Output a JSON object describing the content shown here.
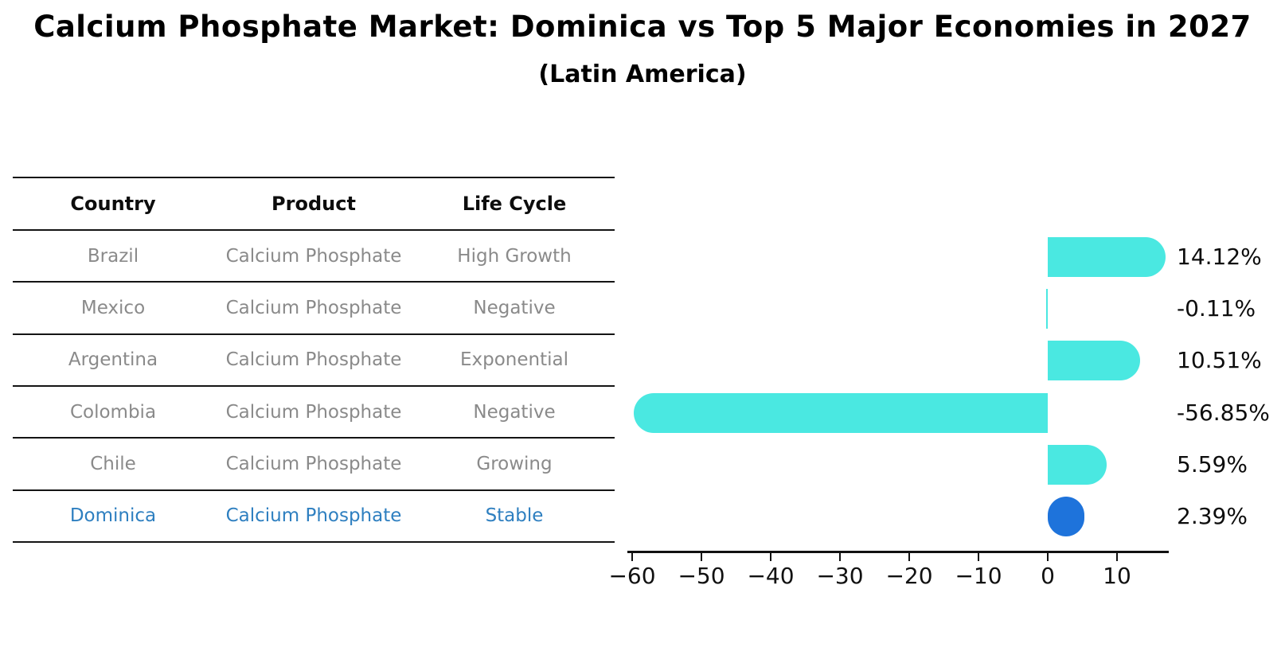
{
  "header": {
    "title": "Calcium Phosphate Market: Dominica vs Top 5 Major Economies in 2027",
    "subtitle": "(Latin America)"
  },
  "table": {
    "headers": [
      "Country",
      "Product",
      "Life Cycle"
    ],
    "rows": [
      {
        "country": "Brazil",
        "product": "Calcium Phosphate",
        "life_cycle": "High Growth",
        "highlight": false
      },
      {
        "country": "Mexico",
        "product": "Calcium Phosphate",
        "life_cycle": "Negative",
        "highlight": false
      },
      {
        "country": "Argentina",
        "product": "Calcium Phosphate",
        "life_cycle": "Exponential",
        "highlight": false
      },
      {
        "country": "Colombia",
        "product": "Calcium Phosphate",
        "life_cycle": "Negative",
        "highlight": false
      },
      {
        "country": "Chile",
        "product": "Calcium Phosphate",
        "life_cycle": "Growing",
        "highlight": false
      },
      {
        "country": "Dominica",
        "product": "Calcium Phosphate",
        "life_cycle": "Stable",
        "highlight": true
      }
    ]
  },
  "chart_data": {
    "type": "bar",
    "orientation": "horizontal",
    "title": "Calcium Phosphate Market: Dominica vs Top 5 Major Economies in 2027",
    "subtitle": "(Latin America)",
    "categories": [
      "Brazil",
      "Mexico",
      "Argentina",
      "Colombia",
      "Chile",
      "Dominica"
    ],
    "values": [
      14.12,
      -0.11,
      10.51,
      -56.85,
      5.59,
      2.39
    ],
    "value_labels": [
      "14.12%",
      "-0.11%",
      "10.51%",
      "-56.85%",
      "5.59%",
      "2.39%"
    ],
    "x_ticks": [
      -60,
      -50,
      -40,
      -30,
      -20,
      -10,
      0,
      10
    ],
    "x_tick_labels": [
      "−60",
      "−50",
      "−40",
      "−30",
      "−20",
      "−10",
      "0",
      "10"
    ],
    "xlim": [
      -60.5,
      17.3
    ],
    "grid": false,
    "legend": false,
    "bar_color": "#4ae8e1",
    "highlight_color": "#1e73db",
    "highlight_index": 5,
    "axis_color": "#111111"
  },
  "colors": {
    "background": "#ffffff",
    "table_text": "#8a8a8a",
    "table_header_text": "#0d0d0d",
    "highlight_text": "#2e7fc0",
    "bar_turquoise": "#4ae8e1",
    "bar_blue": "#1e73db"
  }
}
